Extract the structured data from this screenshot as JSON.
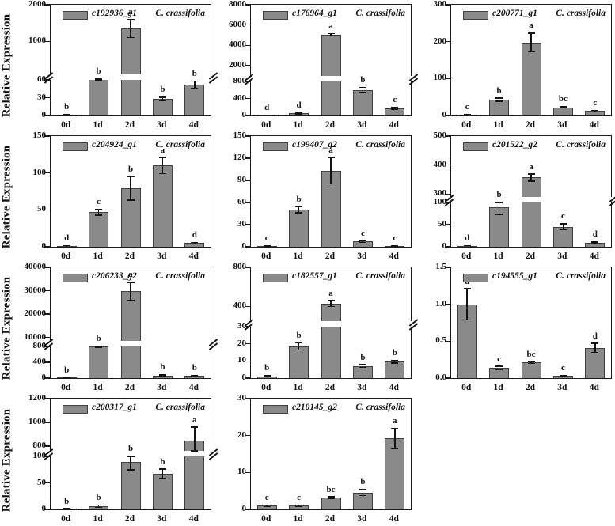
{
  "figure": {
    "y_axis_label": "Relative Expression",
    "x_categories": [
      "0d",
      "1d",
      "2d",
      "3d",
      "4d"
    ],
    "bar_fill": "#8a8a8a",
    "bar_border": "#3f3f3f",
    "axis_color": "#1a1a1a",
    "background": "#ffffff"
  },
  "chart_data": [
    {
      "type": "bar",
      "gene": "c192936_g1",
      "species": "C. crassifolia",
      "categories": [
        "0d",
        "1d",
        "2d",
        "3d",
        "4d"
      ],
      "values": [
        1,
        65,
        1350,
        28,
        52
      ],
      "errors": [
        0.5,
        4,
        250,
        3,
        6
      ],
      "sig_letters": [
        "b",
        "b",
        "a",
        "b",
        "b"
      ],
      "axis_break": true,
      "lower_frac": 0.34,
      "lower": {
        "min": 0,
        "max": 60,
        "ticks": [
          0,
          30,
          60
        ],
        "tick_labels": [
          "0",
          "30",
          "60"
        ]
      },
      "upper": {
        "min": 100,
        "max": 2000,
        "ticks": [
          1000,
          2000
        ],
        "tick_labels": [
          "1000",
          "2000"
        ]
      }
    },
    {
      "type": "bar",
      "gene": "c176964_g1",
      "species": "C. crassifolia",
      "categories": [
        "0d",
        "1d",
        "2d",
        "3d",
        "4d"
      ],
      "values": [
        5,
        50,
        5050,
        600,
        170
      ],
      "errors": [
        2,
        15,
        120,
        60,
        25
      ],
      "sig_letters": [
        "d",
        "d",
        "a",
        "b",
        "c"
      ],
      "axis_break": true,
      "lower_frac": 0.32,
      "lower": {
        "min": 0,
        "max": 800,
        "ticks": [
          0,
          400,
          800
        ],
        "tick_labels": [
          "0",
          "400",
          "800"
        ]
      },
      "upper": {
        "min": 1000,
        "max": 8000,
        "ticks": [
          2000,
          4000,
          6000,
          8000
        ],
        "tick_labels": [
          "2000",
          "4000",
          "6000",
          "8000"
        ]
      }
    },
    {
      "type": "bar",
      "gene": "c200771_g1",
      "species": "C. crassifolia",
      "categories": [
        "0d",
        "1d",
        "2d",
        "3d",
        "4d"
      ],
      "values": [
        2,
        43,
        198,
        22,
        12
      ],
      "errors": [
        1,
        4,
        25,
        2,
        2
      ],
      "sig_letters": [
        "c",
        "b",
        "a",
        "bc",
        "c"
      ],
      "axis_break": false,
      "lower_frac": 1,
      "lower": {
        "min": 0,
        "max": 300,
        "ticks": [
          0,
          100,
          200,
          300
        ],
        "tick_labels": [
          "0",
          "100",
          "200",
          "300"
        ]
      },
      "upper": null
    },
    {
      "type": "bar",
      "gene": "c204924_g1",
      "species": "C. crassifolia",
      "categories": [
        "0d",
        "1d",
        "2d",
        "3d",
        "4d"
      ],
      "values": [
        1,
        47,
        79,
        110,
        5
      ],
      "errors": [
        0.5,
        4,
        16,
        11,
        1
      ],
      "sig_letters": [
        "d",
        "c",
        "b",
        "a",
        "d"
      ],
      "axis_break": false,
      "lower_frac": 1,
      "lower": {
        "min": 0,
        "max": 150,
        "ticks": [
          0,
          50,
          100,
          150
        ],
        "tick_labels": [
          "0",
          "50",
          "100",
          "150"
        ]
      },
      "upper": null
    },
    {
      "type": "bar",
      "gene": "c199407_g2",
      "species": "C. crassifolia",
      "categories": [
        "0d",
        "1d",
        "2d",
        "3d",
        "4d"
      ],
      "values": [
        1,
        50,
        103,
        7,
        1
      ],
      "errors": [
        0.3,
        4,
        18,
        1,
        0.3
      ],
      "sig_letters": [
        "c",
        "b",
        "a",
        "c",
        "c"
      ],
      "axis_break": false,
      "lower_frac": 1,
      "lower": {
        "min": 0,
        "max": 150,
        "ticks": [
          0,
          30,
          60,
          90,
          120,
          150
        ],
        "tick_labels": [
          "0",
          "30",
          "60",
          "90",
          "120",
          "150"
        ]
      },
      "upper": null
    },
    {
      "type": "bar",
      "gene": "c201522_g2",
      "species": "C. crassifolia",
      "categories": [
        "0d",
        "1d",
        "2d",
        "3d",
        "4d"
      ],
      "values": [
        2,
        90,
        357,
        45,
        9
      ],
      "errors": [
        1,
        17,
        12,
        7,
        2
      ],
      "sig_letters": [
        "d",
        "b",
        "a",
        "c",
        "d"
      ],
      "axis_break": true,
      "lower_frac": 0.42,
      "lower": {
        "min": 0,
        "max": 100,
        "ticks": [
          0,
          50,
          100
        ],
        "tick_labels": [
          "0",
          "50",
          "100"
        ]
      },
      "upper": {
        "min": 290,
        "max": 500,
        "ticks": [
          300,
          400,
          500
        ],
        "tick_labels": [
          "300",
          "400",
          "500"
        ]
      }
    },
    {
      "type": "bar",
      "gene": "c206233_g2",
      "species": "C. crassifolia",
      "categories": [
        "0d",
        "1d",
        "2d",
        "3d",
        "4d"
      ],
      "values": [
        5,
        850,
        29700,
        70,
        60
      ],
      "errors": [
        2,
        80,
        3900,
        15,
        12
      ],
      "sig_letters": [
        "b",
        "b",
        "a",
        "b",
        "b"
      ],
      "axis_break": true,
      "lower_frac": 0.3,
      "lower": {
        "min": 0,
        "max": 800,
        "ticks": [
          0,
          400,
          800
        ],
        "tick_labels": [
          "0",
          "400",
          "800"
        ]
      },
      "upper": {
        "min": 8500,
        "max": 40000,
        "ticks": [
          10000,
          20000,
          30000,
          40000
        ],
        "tick_labels": [
          "10000",
          "20000",
          "30000",
          "40000"
        ]
      }
    },
    {
      "type": "bar",
      "gene": "c182557_g1",
      "species": "C. crassifolia",
      "categories": [
        "0d",
        "1d",
        "2d",
        "3d",
        "4d"
      ],
      "values": [
        1,
        18.5,
        430,
        7,
        9.5
      ],
      "errors": [
        0.4,
        2,
        30,
        0.8,
        0.8
      ],
      "sig_letters": [
        "b",
        "b",
        "a",
        "b",
        "b"
      ],
      "axis_break": true,
      "lower_frac": 0.49,
      "lower": {
        "min": 0,
        "max": 30,
        "ticks": [
          0,
          10,
          20,
          30
        ],
        "tick_labels": [
          "0",
          "10",
          "20",
          "30"
        ]
      },
      "upper": {
        "min": 250,
        "max": 800,
        "ticks": [
          400,
          800
        ],
        "tick_labels": [
          "400",
          "800"
        ]
      }
    },
    {
      "type": "bar",
      "gene": "c194555_g1",
      "species": "C. crassifolia",
      "categories": [
        "0d",
        "1d",
        "2d",
        "3d",
        "4d"
      ],
      "values": [
        1.0,
        0.14,
        0.21,
        0.03,
        0.41
      ],
      "errors": [
        0.21,
        0.02,
        0.01,
        0.01,
        0.06
      ],
      "sig_letters": [
        "a",
        "c",
        "bc",
        "c",
        "d"
      ],
      "axis_break": false,
      "lower_frac": 1,
      "lower": {
        "min": 0,
        "max": 1.5,
        "ticks": [
          0,
          0.5,
          1,
          1.5
        ],
        "tick_labels": [
          "0.0",
          "0.5",
          "1.0",
          "1.5"
        ]
      },
      "upper": null
    },
    {
      "type": "bar",
      "gene": "c200317_g1",
      "species": "C. crassifolia",
      "categories": [
        "0d",
        "1d",
        "2d",
        "3d",
        "4d"
      ],
      "values": [
        1,
        6,
        90,
        67,
        850
      ],
      "errors": [
        0.5,
        2,
        15,
        9,
        110
      ],
      "sig_letters": [
        "b",
        "b",
        "b",
        "b",
        "a"
      ],
      "axis_break": true,
      "lower_frac": 0.5,
      "lower": {
        "min": 0,
        "max": 100,
        "ticks": [
          0,
          50,
          100
        ],
        "tick_labels": [
          "0",
          "50",
          "100"
        ]
      },
      "upper": {
        "min": 760,
        "max": 1200,
        "ticks": [
          800,
          1000,
          1200
        ],
        "tick_labels": [
          "800",
          "1000",
          "1200"
        ]
      }
    },
    {
      "type": "bar",
      "gene": "c210145_g2",
      "species": "C. crassifolia",
      "categories": [
        "0d",
        "1d",
        "2d",
        "3d",
        "4d"
      ],
      "values": [
        1,
        1,
        3.2,
        4.6,
        19.2
      ],
      "errors": [
        0.2,
        0.2,
        0.2,
        0.8,
        2.8
      ],
      "sig_letters": [
        "c",
        "c",
        "bc",
        "b",
        "a"
      ],
      "axis_break": false,
      "lower_frac": 1,
      "lower": {
        "min": 0,
        "max": 30,
        "ticks": [
          0,
          10,
          20,
          30
        ],
        "tick_labels": [
          "0",
          "10",
          "20",
          "30"
        ]
      },
      "upper": null
    }
  ]
}
